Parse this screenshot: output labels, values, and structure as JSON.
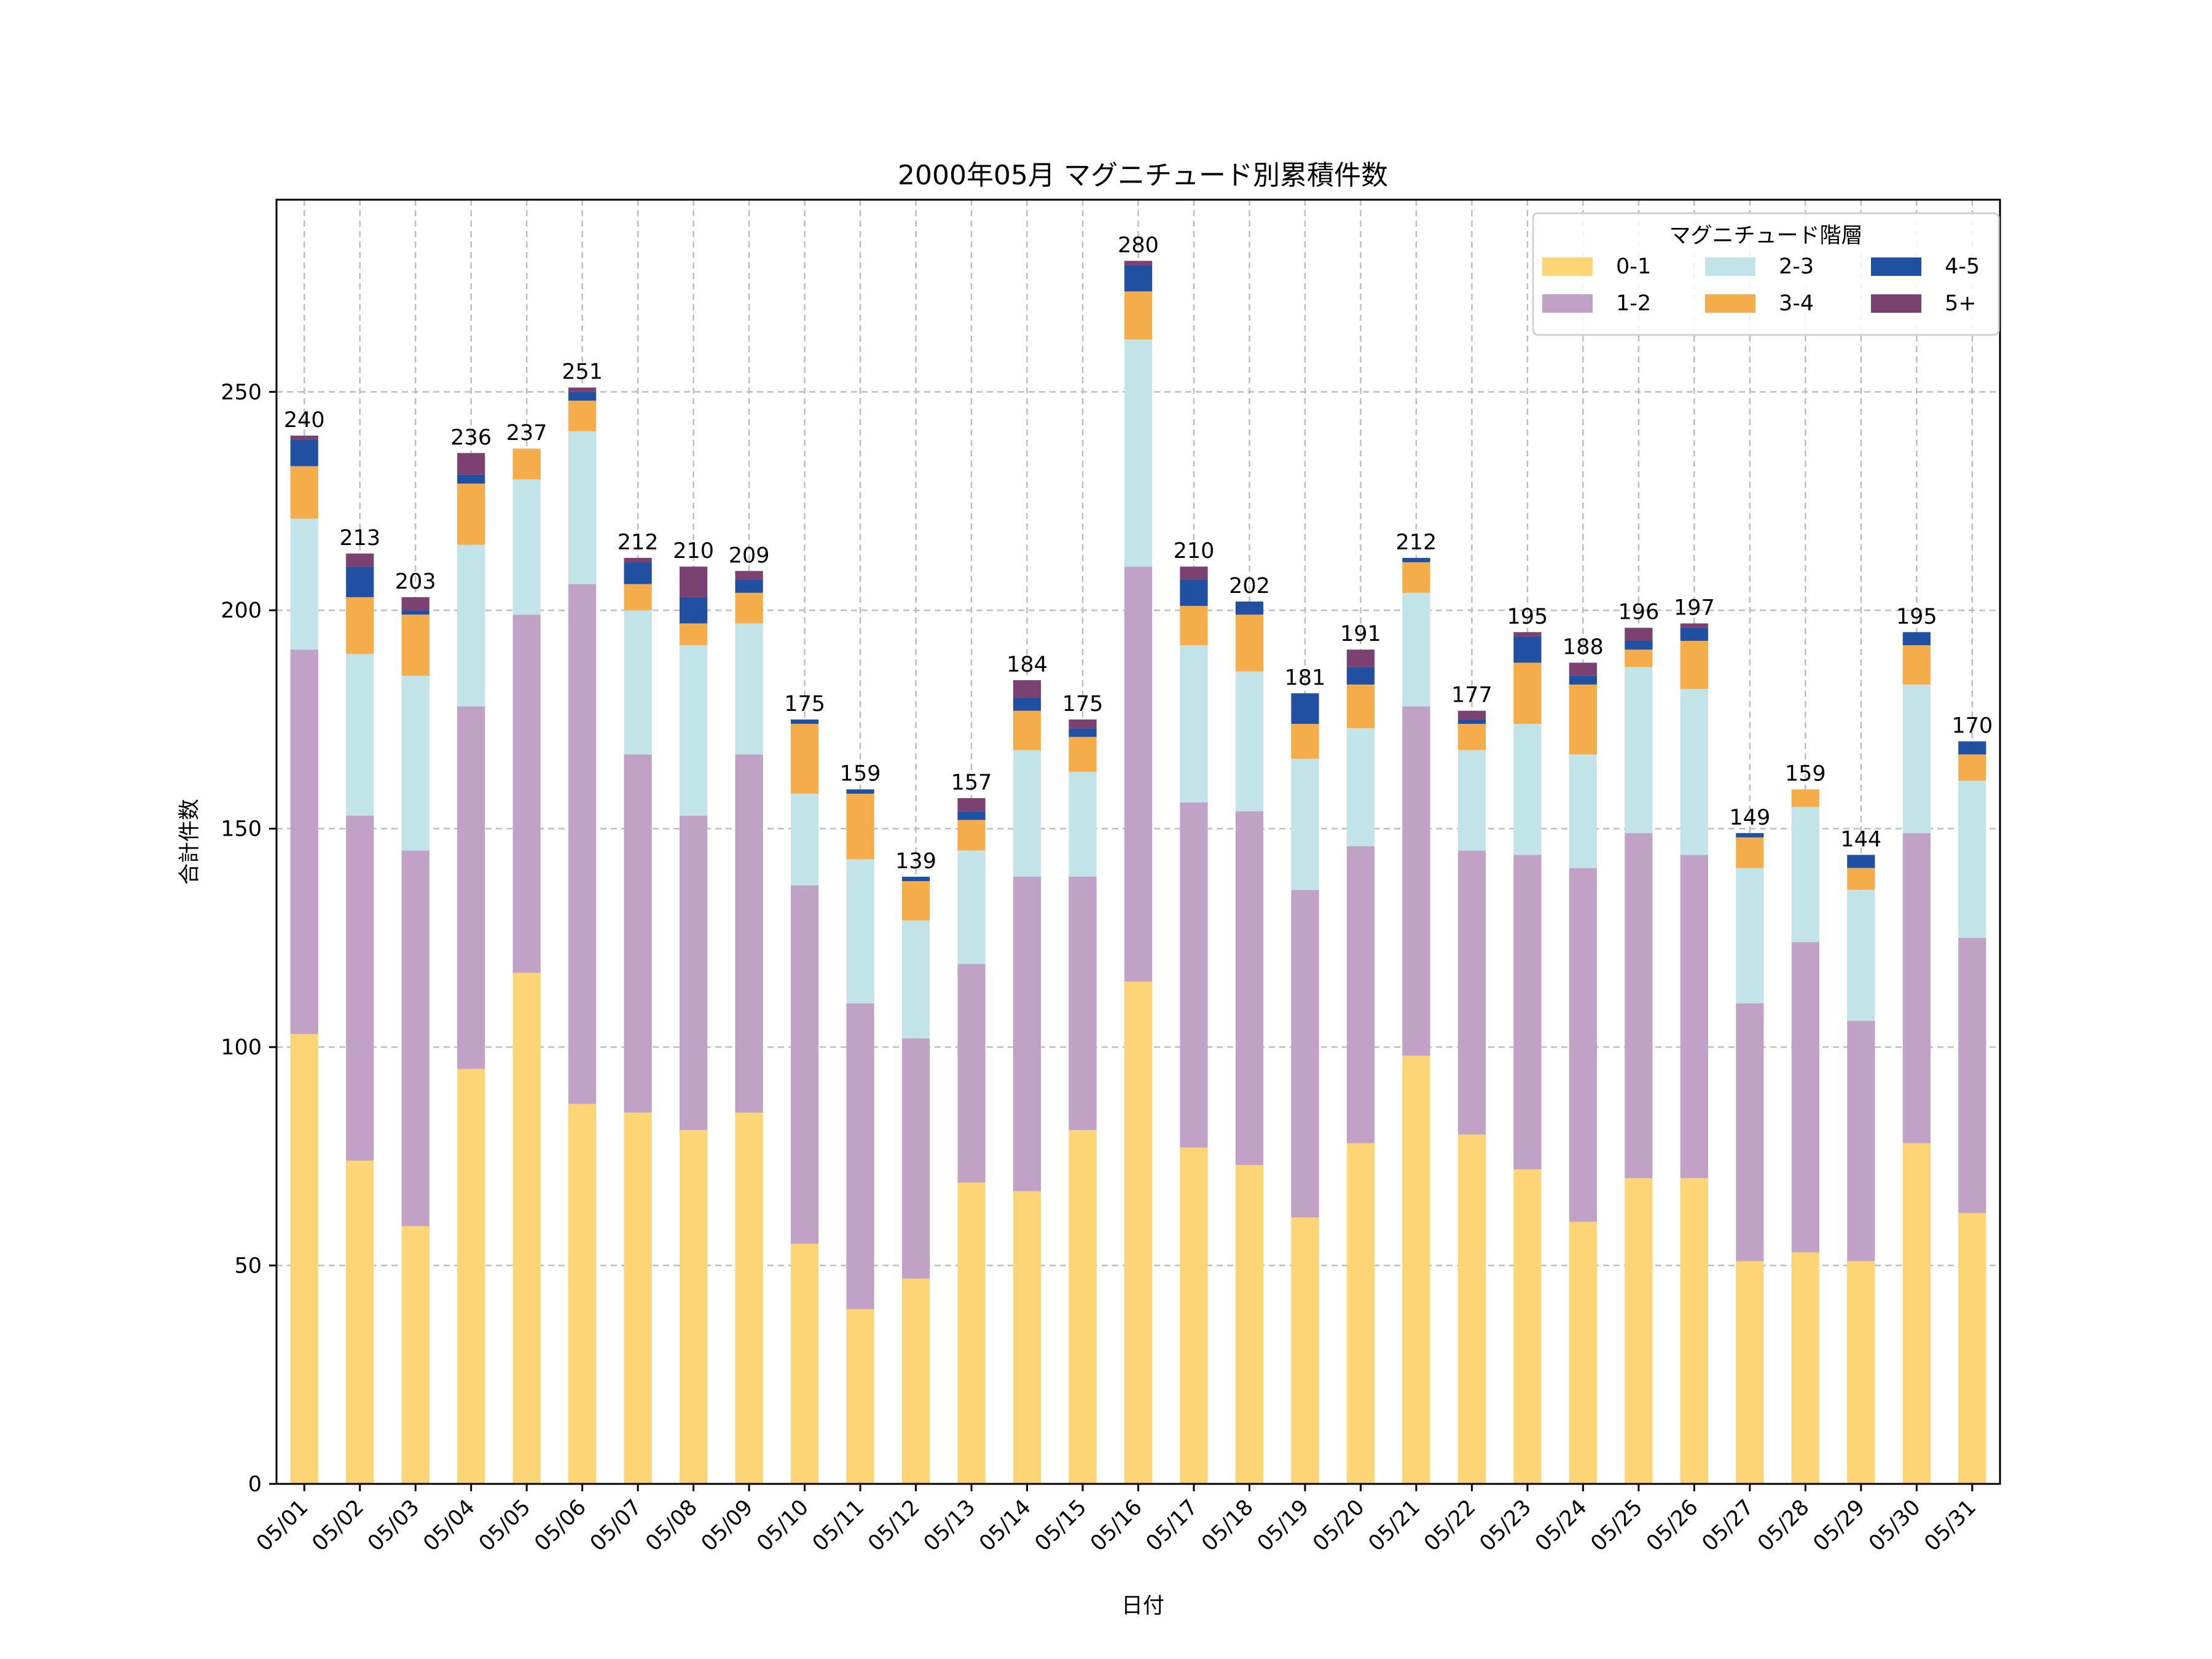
{
  "chart_data": {
    "type": "bar",
    "stacked": true,
    "title": "2000年05月 マグニチュード別累積件数",
    "xlabel": "日付",
    "ylabel": "合計件数",
    "ylim": [
      0,
      294
    ],
    "yticks": [
      0,
      50,
      100,
      150,
      200,
      250
    ],
    "grid": true,
    "legend": {
      "title": "マグニチュード階層",
      "position": "top-right",
      "columns": 3
    },
    "categories": [
      "05/01",
      "05/02",
      "05/03",
      "05/04",
      "05/05",
      "05/06",
      "05/07",
      "05/08",
      "05/09",
      "05/10",
      "05/11",
      "05/12",
      "05/13",
      "05/14",
      "05/15",
      "05/16",
      "05/17",
      "05/18",
      "05/19",
      "05/20",
      "05/21",
      "05/22",
      "05/23",
      "05/24",
      "05/25",
      "05/26",
      "05/27",
      "05/28",
      "05/29",
      "05/30",
      "05/31"
    ],
    "series": [
      {
        "name": "0-1",
        "color": "#FBD476",
        "values": [
          103,
          74,
          59,
          95,
          117,
          87,
          85,
          81,
          85,
          55,
          40,
          47,
          69,
          67,
          81,
          115,
          77,
          73,
          61,
          78,
          98,
          80,
          72,
          60,
          70,
          70,
          51,
          53,
          51,
          78,
          62
        ]
      },
      {
        "name": "1-2",
        "color": "#C0A2C7",
        "values": [
          88,
          79,
          86,
          83,
          82,
          119,
          82,
          72,
          82,
          82,
          70,
          55,
          50,
          72,
          58,
          95,
          79,
          81,
          75,
          68,
          80,
          65,
          72,
          81,
          79,
          74,
          59,
          71,
          55,
          71,
          63
        ]
      },
      {
        "name": "2-3",
        "color": "#C2E3E7",
        "values": [
          30,
          37,
          40,
          37,
          31,
          35,
          33,
          39,
          30,
          21,
          33,
          27,
          26,
          29,
          24,
          52,
          36,
          32,
          30,
          27,
          26,
          23,
          30,
          26,
          38,
          38,
          31,
          31,
          30,
          34,
          36
        ]
      },
      {
        "name": "3-4",
        "color": "#F5AC4A",
        "values": [
          12,
          13,
          14,
          14,
          7,
          7,
          6,
          5,
          7,
          16,
          15,
          9,
          7,
          9,
          8,
          11,
          9,
          13,
          8,
          10,
          7,
          6,
          14,
          16,
          4,
          11,
          7,
          4,
          5,
          9,
          6
        ]
      },
      {
        "name": "4-5",
        "color": "#2150A2",
        "values": [
          6,
          7,
          1,
          2,
          0,
          2,
          5,
          6,
          3,
          1,
          1,
          1,
          2,
          3,
          2,
          6,
          6,
          3,
          7,
          4,
          1,
          1,
          6,
          2,
          2,
          3,
          1,
          0,
          3,
          3,
          3
        ]
      },
      {
        "name": "5+",
        "color": "#7B4170",
        "values": [
          1,
          3,
          3,
          5,
          0,
          1,
          1,
          7,
          2,
          0,
          0,
          0,
          3,
          4,
          2,
          1,
          3,
          0,
          0,
          4,
          0,
          2,
          1,
          3,
          3,
          1,
          0,
          0,
          0,
          0,
          0
        ]
      }
    ],
    "totals": [
      240,
      213,
      203,
      236,
      237,
      251,
      212,
      210,
      209,
      175,
      159,
      139,
      157,
      184,
      175,
      280,
      210,
      202,
      181,
      191,
      212,
      177,
      195,
      188,
      196,
      197,
      149,
      159,
      144,
      195,
      170
    ]
  }
}
